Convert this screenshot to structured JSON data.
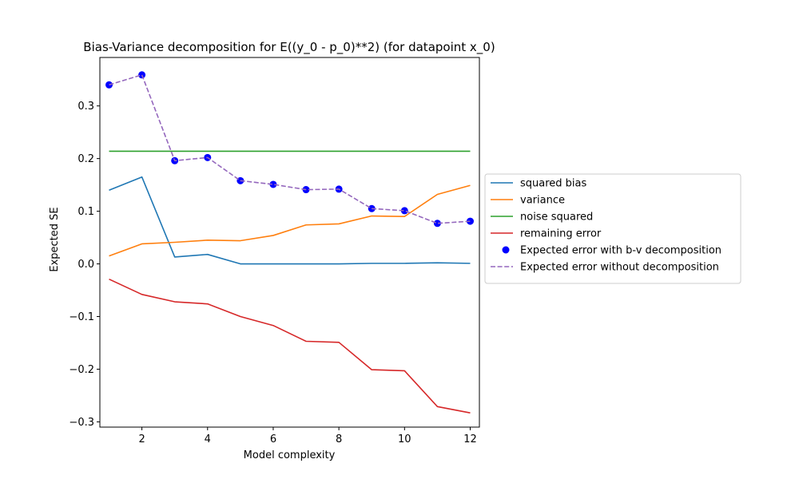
{
  "chart_data": {
    "type": "line",
    "title": "Bias-Variance decomposition for E((y_0 - p_0)**2) (for datapoint x_0)",
    "xlabel": "Model complexity",
    "ylabel": "Expected SE",
    "xlim": [
      0.72,
      12.28
    ],
    "ylim": [
      -0.31,
      0.392
    ],
    "xticks": [
      2,
      4,
      6,
      8,
      10,
      12
    ],
    "xtick_labels": [
      "2",
      "4",
      "6",
      "8",
      "10",
      "12"
    ],
    "yticks": [
      -0.3,
      -0.2,
      -0.1,
      0.0,
      0.1,
      0.2,
      0.3
    ],
    "ytick_labels": [
      "−0.3",
      "−0.2",
      "−0.1",
      "0.0",
      "0.1",
      "0.2",
      "0.3"
    ],
    "grid": false,
    "legend_position": "right, outside plot",
    "x": [
      1,
      2,
      3,
      4,
      5,
      6,
      7,
      8,
      9,
      10,
      11,
      12
    ],
    "series": [
      {
        "name": "squared bias",
        "style": "line",
        "color": "#1f77b4",
        "values": [
          0.14,
          0.165,
          0.013,
          0.018,
          0.0,
          0.0,
          0.0,
          0.0,
          0.001,
          0.001,
          0.002,
          0.001
        ]
      },
      {
        "name": "variance",
        "style": "line",
        "color": "#ff7f0e",
        "values": [
          0.015,
          0.038,
          0.041,
          0.045,
          0.044,
          0.054,
          0.074,
          0.076,
          0.091,
          0.09,
          0.132,
          0.149
        ]
      },
      {
        "name": "noise squared",
        "style": "line",
        "color": "#2ca02c",
        "values": [
          0.214,
          0.214,
          0.214,
          0.214,
          0.214,
          0.214,
          0.214,
          0.214,
          0.214,
          0.214,
          0.214,
          0.214
        ]
      },
      {
        "name": "remaining error",
        "style": "line",
        "color": "#d62728",
        "values": [
          -0.029,
          -0.058,
          -0.072,
          -0.076,
          -0.1,
          -0.117,
          -0.147,
          -0.149,
          -0.201,
          -0.203,
          -0.271,
          -0.283
        ]
      },
      {
        "name": "Expected error with b-v decomposition",
        "style": "markers",
        "color": "#0000ff",
        "values": [
          0.34,
          0.359,
          0.196,
          0.202,
          0.158,
          0.151,
          0.141,
          0.142,
          0.105,
          0.101,
          0.077,
          0.081
        ]
      },
      {
        "name": "Expected error without decomposition",
        "style": "dashed",
        "color": "#9467bd",
        "values": [
          0.34,
          0.359,
          0.196,
          0.202,
          0.158,
          0.151,
          0.141,
          0.142,
          0.105,
          0.101,
          0.077,
          0.081
        ]
      }
    ]
  }
}
